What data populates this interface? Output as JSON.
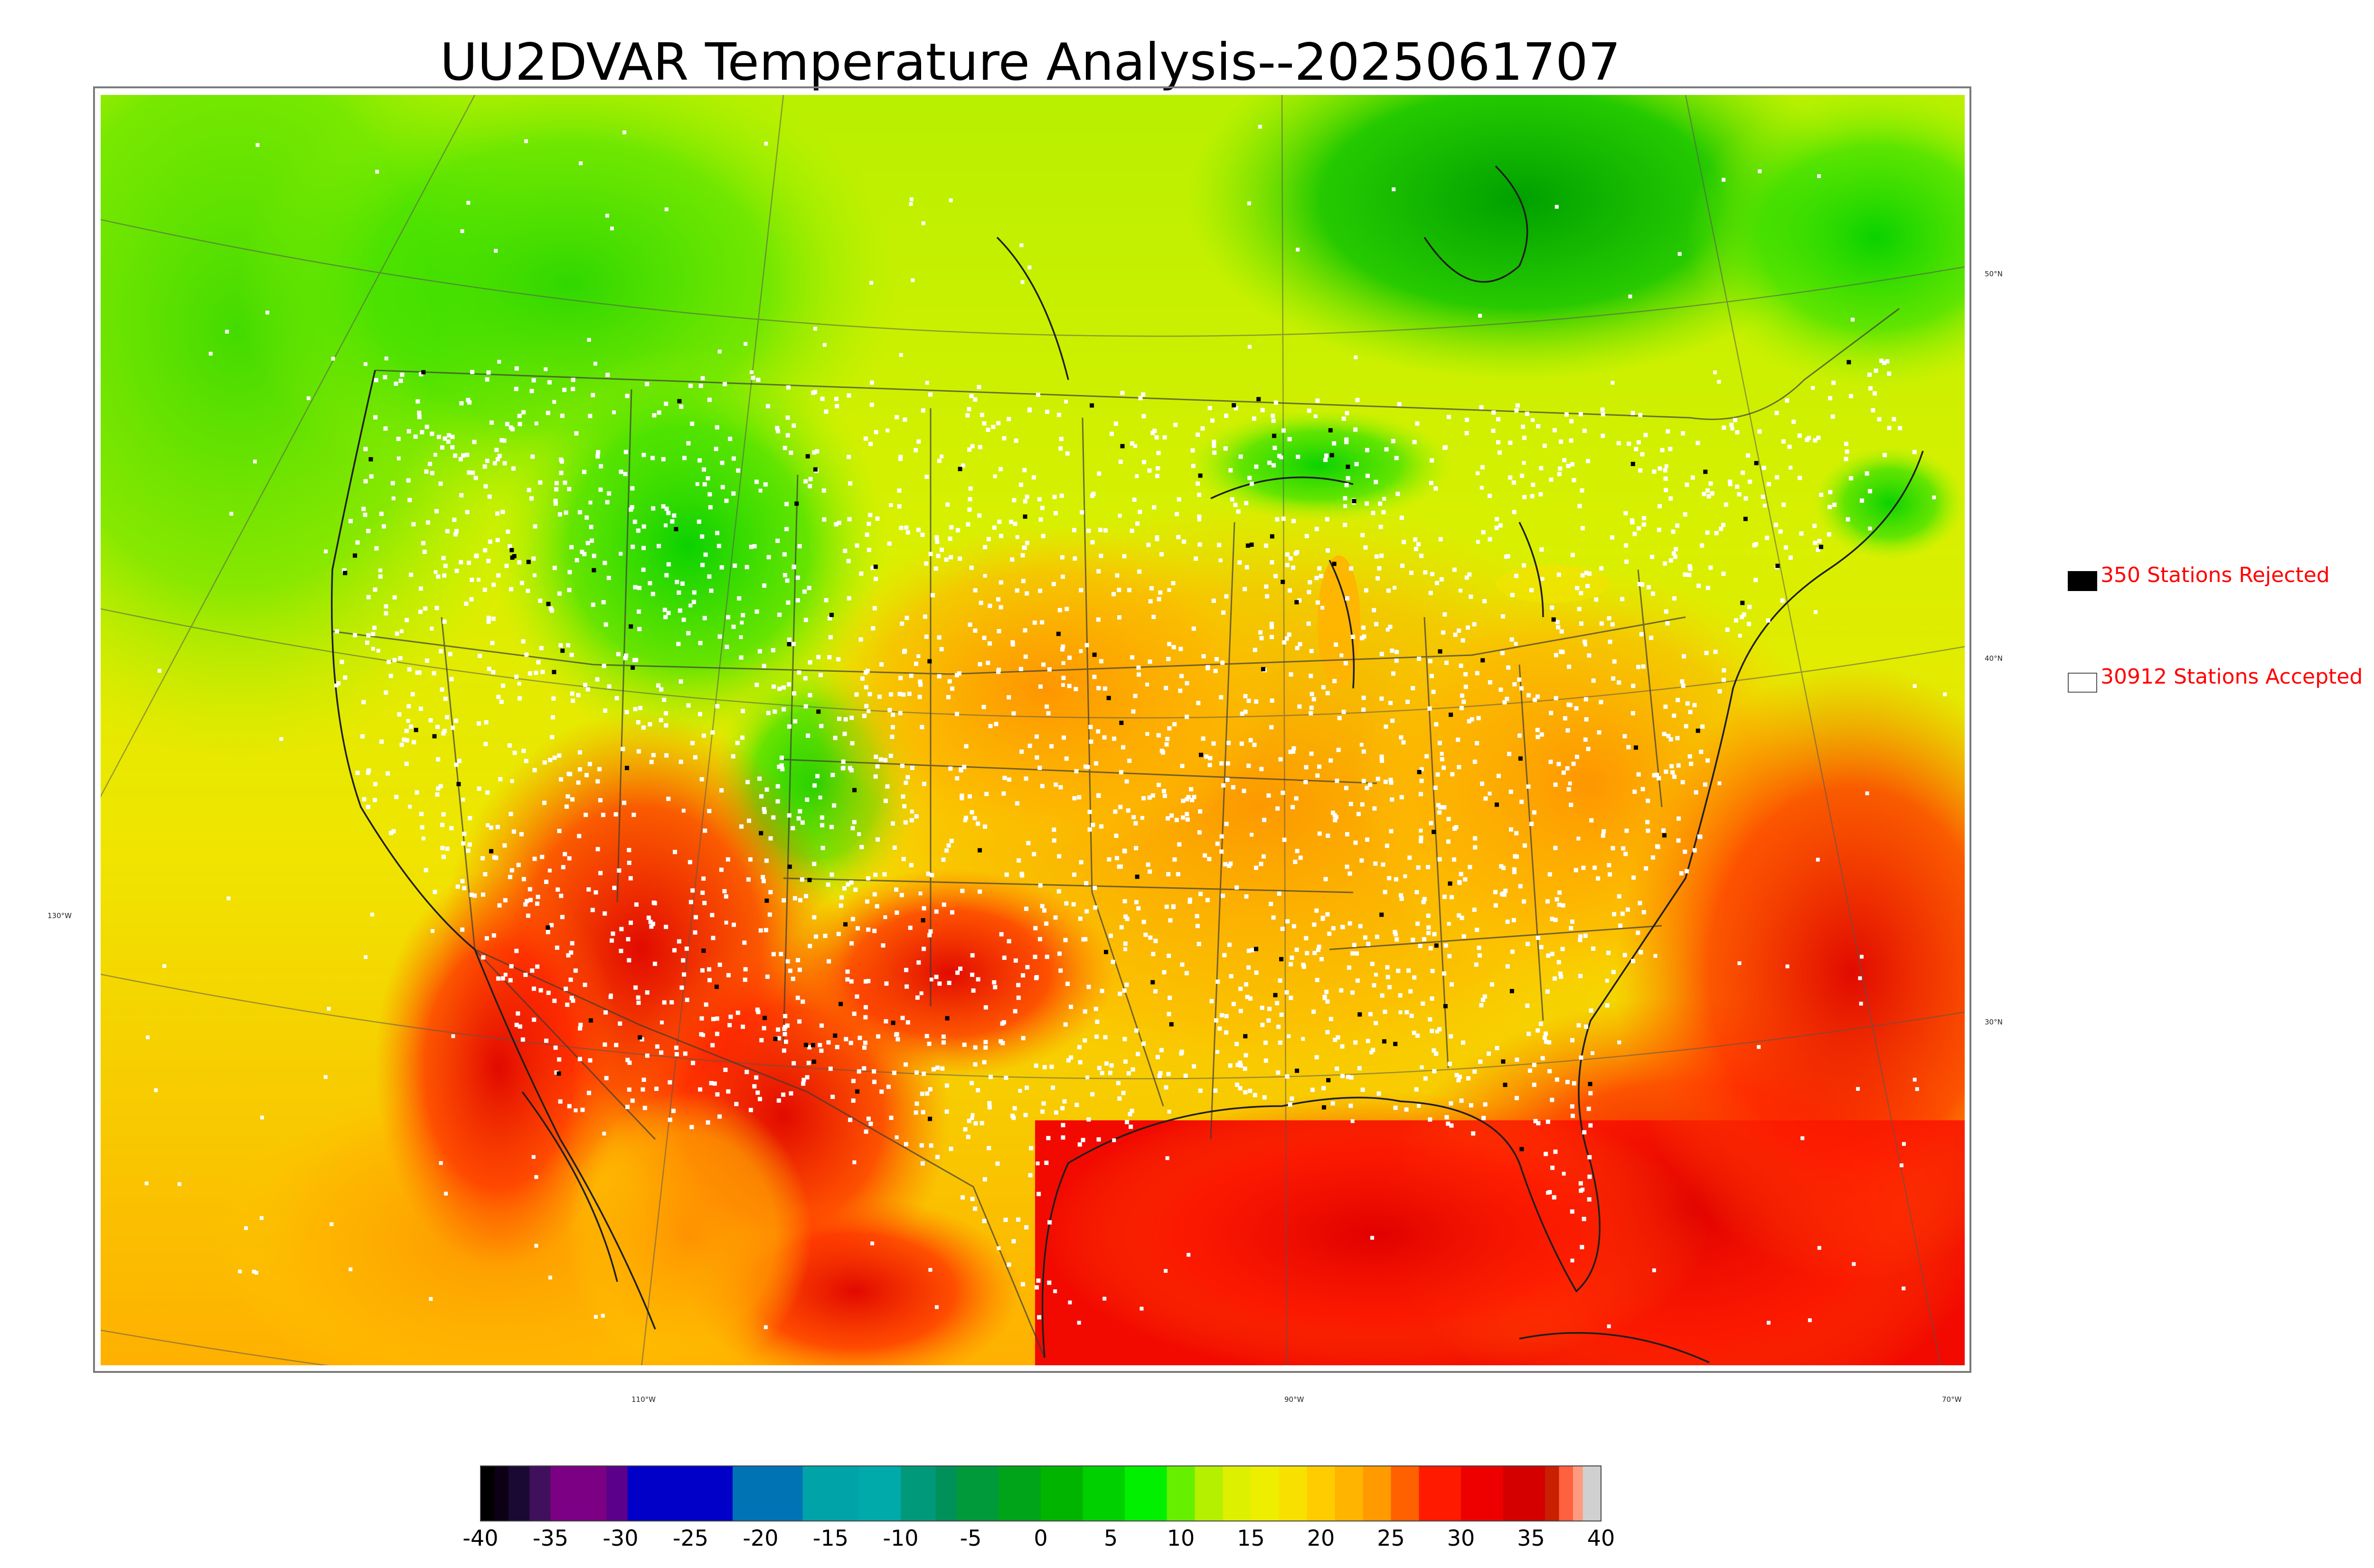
{
  "title": "UU2DVAR Temperature Analysis--2025061707",
  "legend": {
    "rejected": {
      "count": "350",
      "label": "350 Stations Rejected",
      "color": "#000000",
      "text_color": "#ff0000"
    },
    "accepted": {
      "count": "30912",
      "label": "30912 Stations Accepted",
      "color": "#ffffff",
      "text_color": "#ff0000"
    }
  },
  "graticule_labels": {
    "lat": [
      "50°N",
      "40°N",
      "30°N"
    ],
    "lon": [
      "130°W",
      "110°W",
      "90°W",
      "70°W"
    ]
  },
  "colorbar": {
    "min": -40,
    "max": 40,
    "tick_labels": [
      "-40",
      "-35",
      "-30",
      "-25",
      "-20",
      "-15",
      "-10",
      "-5",
      "0",
      "5",
      "10",
      "15",
      "20",
      "25",
      "30",
      "35",
      "40"
    ],
    "segments": [
      {
        "from": -40,
        "to": -39,
        "color": "#000000"
      },
      {
        "from": -39,
        "to": -38,
        "color": "#0d0016"
      },
      {
        "from": -38,
        "to": -36.5,
        "color": "#1a0a33"
      },
      {
        "from": -36.5,
        "to": -35,
        "color": "#40105c"
      },
      {
        "from": -35,
        "to": -31,
        "color": "#7b0084"
      },
      {
        "from": -31,
        "to": -29.5,
        "color": "#5a008a"
      },
      {
        "from": -29.5,
        "to": -22,
        "color": "#0000c8"
      },
      {
        "from": -22,
        "to": -17,
        "color": "#0073b4"
      },
      {
        "from": -17,
        "to": -13,
        "color": "#00a3a8"
      },
      {
        "from": -13,
        "to": -10,
        "color": "#00aaaa"
      },
      {
        "from": -10,
        "to": -7.5,
        "color": "#009a7a"
      },
      {
        "from": -7.5,
        "to": -6,
        "color": "#00905a"
      },
      {
        "from": -6,
        "to": -3,
        "color": "#009a3a"
      },
      {
        "from": -3,
        "to": 0,
        "color": "#00a418"
      },
      {
        "from": 0,
        "to": 3,
        "color": "#00b400"
      },
      {
        "from": 3,
        "to": 6,
        "color": "#00d000"
      },
      {
        "from": 6,
        "to": 9,
        "color": "#00f000"
      },
      {
        "from": 9,
        "to": 11,
        "color": "#66f000"
      },
      {
        "from": 11,
        "to": 13,
        "color": "#b4f000"
      },
      {
        "from": 13,
        "to": 15,
        "color": "#ddf000"
      },
      {
        "from": 15,
        "to": 17,
        "color": "#eeee00"
      },
      {
        "from": 17,
        "to": 19,
        "color": "#f8e000"
      },
      {
        "from": 19,
        "to": 21,
        "color": "#ffcc00"
      },
      {
        "from": 21,
        "to": 23,
        "color": "#ffb400"
      },
      {
        "from": 23,
        "to": 25,
        "color": "#ff9a00"
      },
      {
        "from": 25,
        "to": 27,
        "color": "#ff6000"
      },
      {
        "from": 27,
        "to": 30,
        "color": "#ff1a00"
      },
      {
        "from": 30,
        "to": 33,
        "color": "#ee0000"
      },
      {
        "from": 33,
        "to": 36,
        "color": "#d40000"
      },
      {
        "from": 36,
        "to": 37,
        "color": "#c82000"
      },
      {
        "from": 37,
        "to": 38,
        "color": "#ff6040"
      },
      {
        "from": 38,
        "to": 38.7,
        "color": "#ff9a80"
      },
      {
        "from": 38.7,
        "to": 40,
        "color": "#d0d0d0"
      }
    ]
  }
}
